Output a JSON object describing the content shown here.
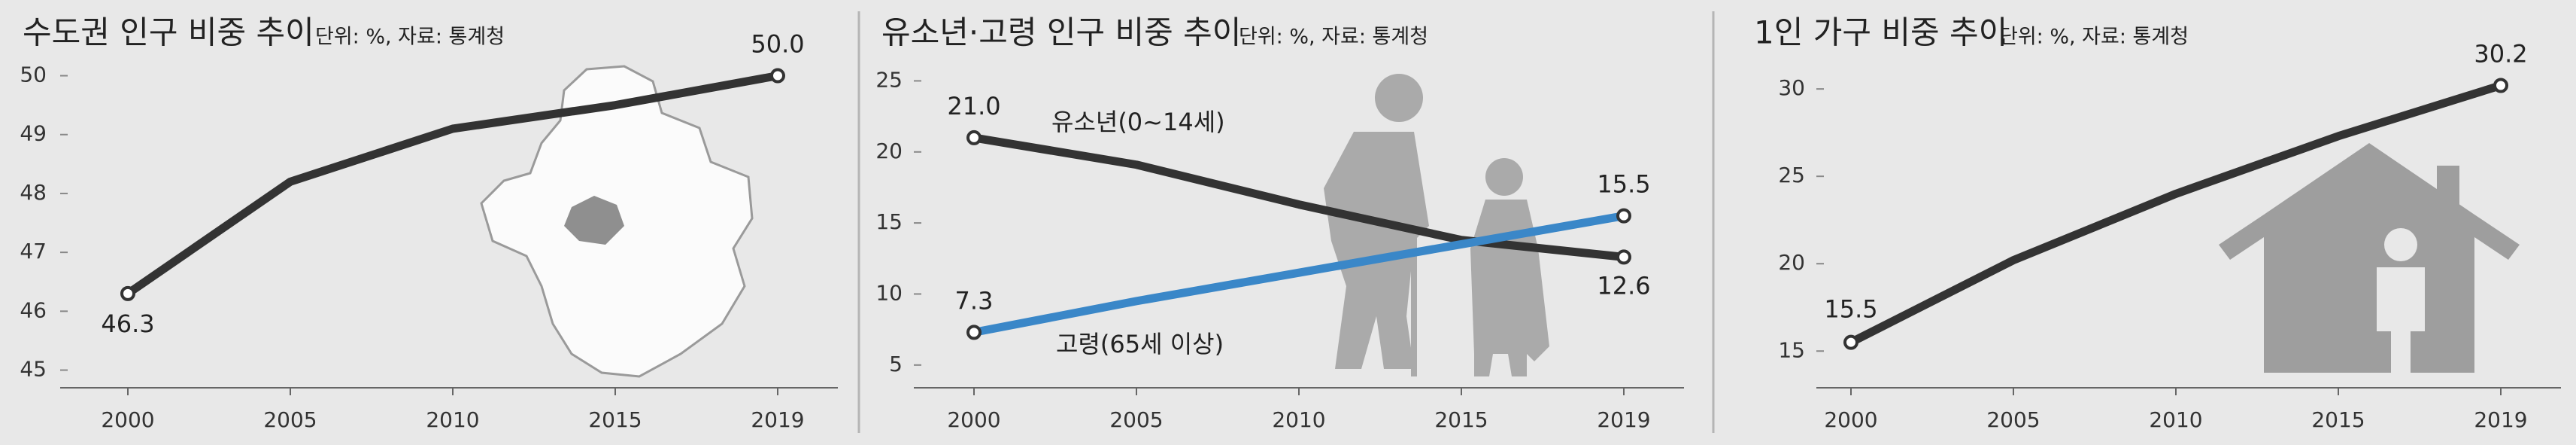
{
  "chart_data": [
    {
      "type": "line",
      "title": "수도권 인구 비중 추이",
      "subtitle": "단위: %, 자료: 통계청",
      "categories": [
        "2000",
        "2005",
        "2010",
        "2015",
        "2019"
      ],
      "series": [
        {
          "color": "#333333",
          "values": [
            46.3,
            48.2,
            49.1,
            49.5,
            50.0
          ],
          "value_labels": [
            "46.3",
            null,
            null,
            null,
            "50.0"
          ]
        }
      ],
      "ylim": [
        44.7,
        50.25
      ],
      "yticks": [
        45,
        46,
        47,
        48,
        49,
        50
      ],
      "grid": false
    },
    {
      "type": "line",
      "title": "유소년·고령 인구 비중 추이",
      "subtitle": "단위: %, 자료: 통계청",
      "categories": [
        "2000",
        "2005",
        "2010",
        "2015",
        "2019"
      ],
      "series": [
        {
          "name": "유소년(0~14세)",
          "color": "#333333",
          "values": [
            21.0,
            19.1,
            16.3,
            13.8,
            12.6
          ],
          "value_labels": [
            "21.0",
            null,
            null,
            null,
            "12.6"
          ]
        },
        {
          "name": "고령(65세 이상)",
          "color": "#3a87c8",
          "values": [
            7.3,
            9.5,
            11.5,
            13.5,
            15.5
          ],
          "value_labels": [
            "7.3",
            null,
            null,
            null,
            "15.5"
          ]
        }
      ],
      "ylim": [
        3.4,
        26.4
      ],
      "yticks": [
        5,
        10,
        15,
        20,
        25
      ],
      "grid": false
    },
    {
      "type": "line",
      "title": "1인 가구 비중 추이",
      "subtitle": "단위: %, 자료: 통계청",
      "categories": [
        "2000",
        "2005",
        "2010",
        "2015",
        "2019"
      ],
      "series": [
        {
          "color": "#333333",
          "values": [
            15.5,
            20.2,
            24.0,
            27.3,
            30.2
          ],
          "value_labels": [
            "15.5",
            null,
            null,
            null,
            "30.2"
          ]
        }
      ],
      "ylim": [
        12.9,
        31.6
      ],
      "yticks": [
        15,
        20,
        25,
        30
      ],
      "grid": false
    }
  ]
}
